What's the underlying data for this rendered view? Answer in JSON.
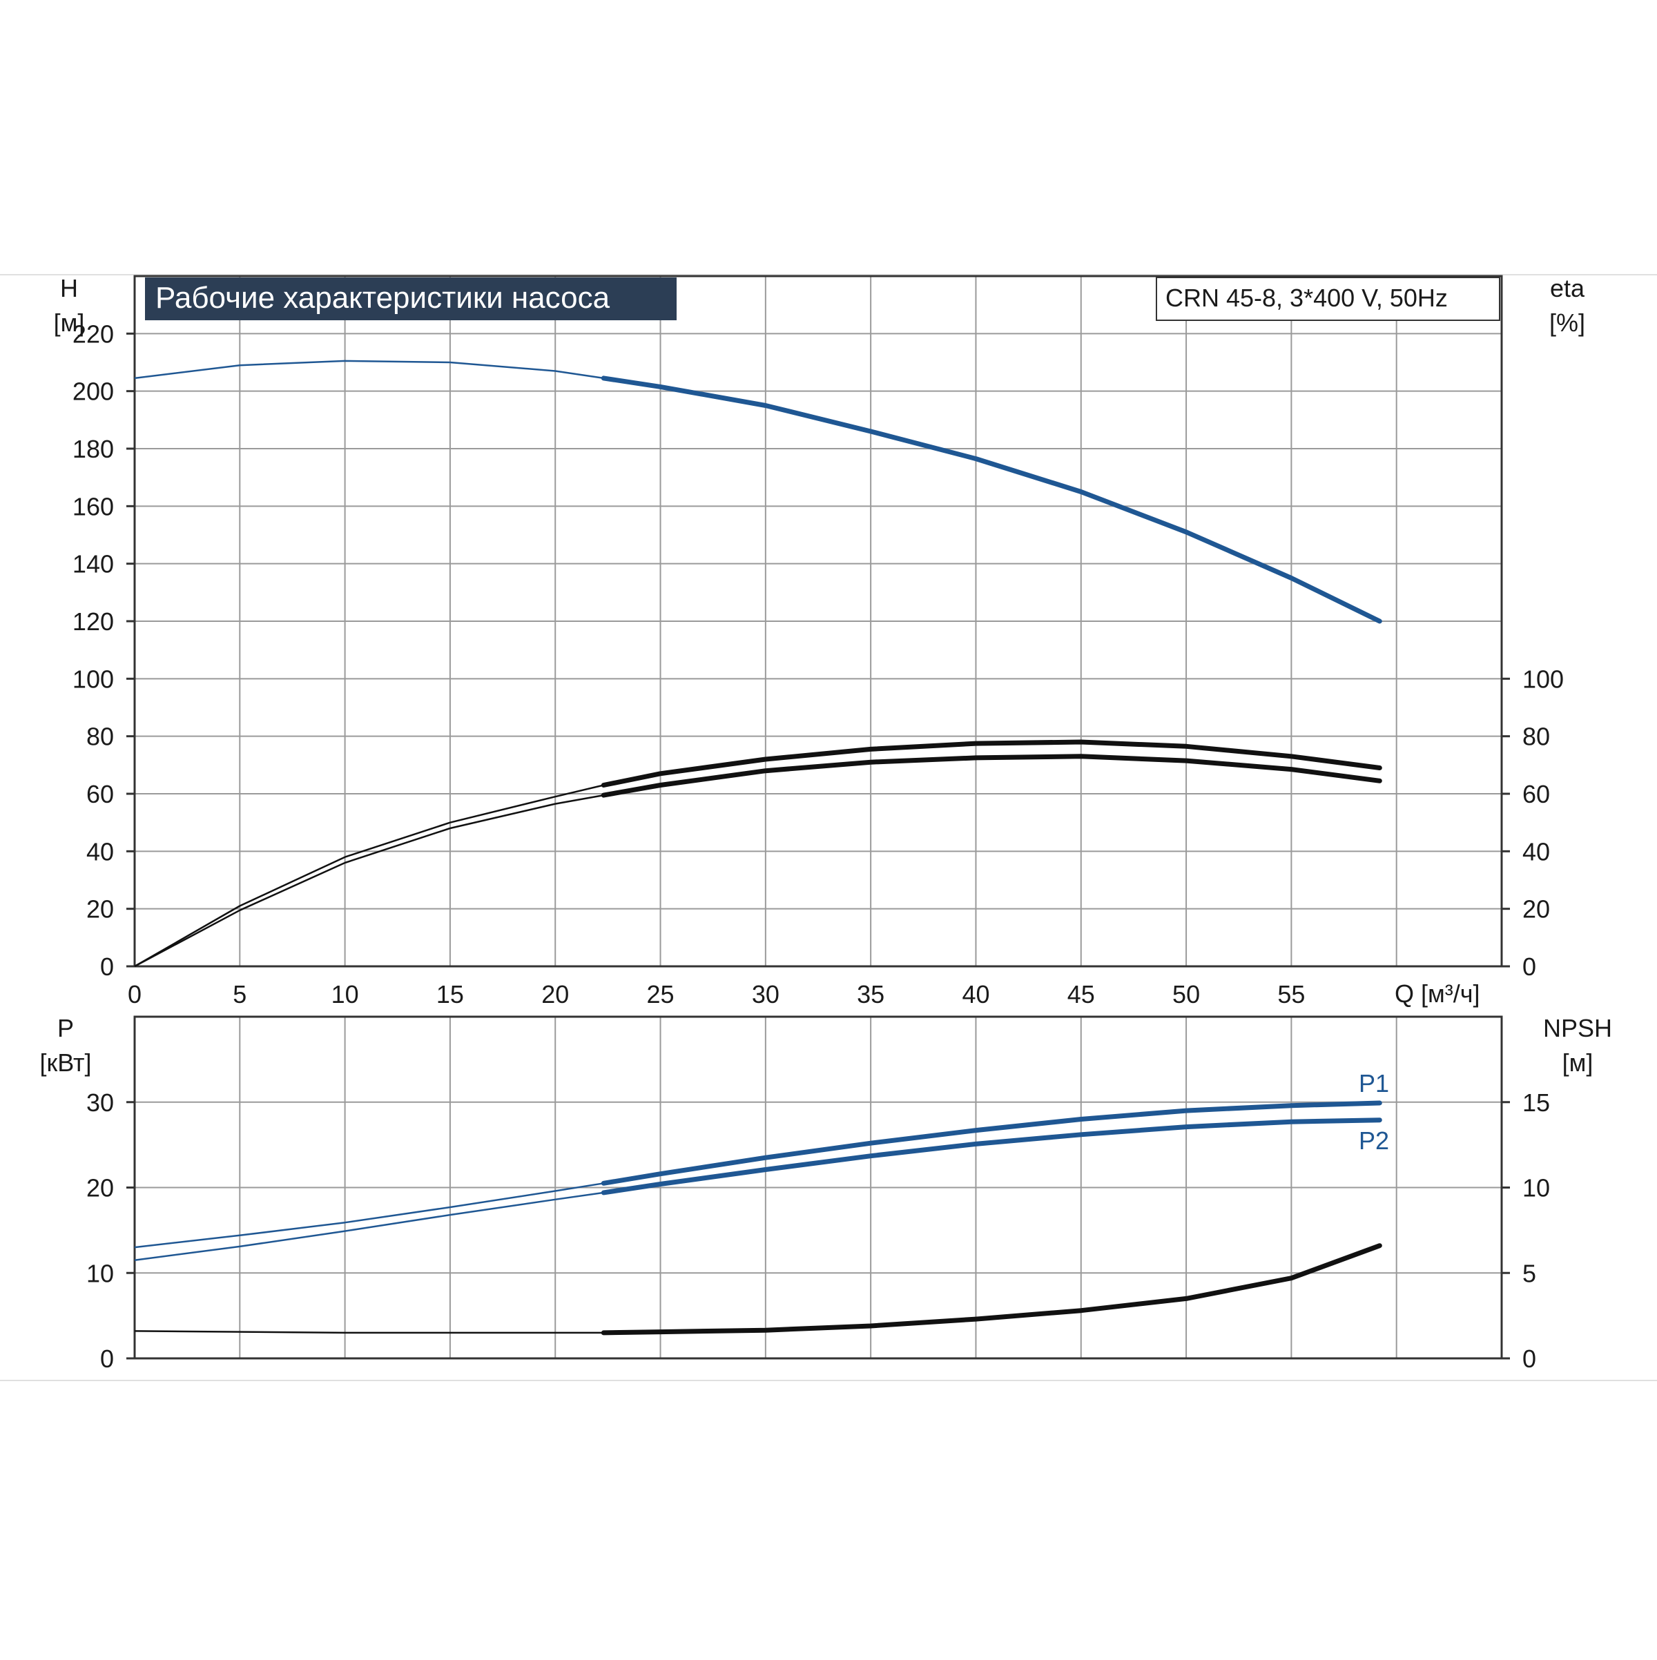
{
  "title": "Рабочие характеристики насоса",
  "model_label": "CRN 45-8, 3*400 V, 50Hz",
  "colors": {
    "blue": "#1f5793",
    "black": "#111111",
    "grid": "#9a9a9a",
    "title_bg": "#2c3e55"
  },
  "chart_data": [
    {
      "type": "line",
      "name": "top",
      "xlabel": "Q [м³/ч]",
      "ylabel": [
        "H",
        "[м]"
      ],
      "ylabel_right": [
        "eta",
        "[%]"
      ],
      "xlim": [
        0,
        65
      ],
      "ylim": [
        0,
        240
      ],
      "x_ticks": [
        0,
        5,
        10,
        15,
        20,
        25,
        30,
        35,
        40,
        45,
        50,
        55
      ],
      "y_ticks_left": [
        0,
        20,
        40,
        60,
        80,
        100,
        120,
        140,
        160,
        180,
        200,
        220
      ],
      "y_ticks_right": [
        0,
        20,
        40,
        60,
        80,
        100
      ],
      "grid": true,
      "series": [
        {
          "axis": "left",
          "color": "blue",
          "op_start": 22.3,
          "x": [
            0,
            5,
            10,
            15,
            20,
            22.3,
            25,
            30,
            35,
            40,
            45,
            50,
            55,
            59.2
          ],
          "y": [
            204.5,
            209,
            210.5,
            210,
            207,
            204.5,
            201.5,
            195,
            186,
            176.5,
            165,
            151,
            135,
            120
          ]
        },
        {
          "axis": "right",
          "color": "black",
          "op_start": 22.3,
          "x": [
            0,
            5,
            10,
            15,
            20,
            22.3,
            25,
            30,
            35,
            40,
            45,
            50,
            55,
            59.2
          ],
          "y": [
            0,
            21,
            38,
            50,
            59,
            63,
            67,
            72,
            75.5,
            77.5,
            78,
            76.5,
            73,
            69
          ]
        },
        {
          "axis": "right",
          "color": "black",
          "op_start": 22.3,
          "x": [
            0,
            5,
            10,
            15,
            20,
            22.3,
            25,
            30,
            35,
            40,
            45,
            50,
            55,
            59.2
          ],
          "y": [
            0,
            19.5,
            36,
            48,
            56.5,
            59.5,
            63,
            68,
            71,
            72.5,
            73,
            71.5,
            68.5,
            64.5
          ]
        }
      ]
    },
    {
      "type": "line",
      "name": "bottom",
      "ylabel": [
        "P",
        "[кВт]"
      ],
      "ylabel_right": [
        "NPSH",
        "[м]"
      ],
      "xlim": [
        0,
        65
      ],
      "ylim": [
        0,
        40
      ],
      "x_ticks": [
        0,
        5,
        10,
        15,
        20,
        25,
        30,
        35,
        40,
        45,
        50,
        55
      ],
      "y_ticks_left": [
        0,
        10,
        20,
        30
      ],
      "y_ticks_right": [
        0,
        5,
        10,
        15
      ],
      "grid": true,
      "series": [
        {
          "name": "P1",
          "axis": "left",
          "color": "blue",
          "op_start": 22.3,
          "x": [
            0,
            5,
            10,
            15,
            20,
            22.3,
            25,
            30,
            35,
            40,
            45,
            50,
            55,
            59.2
          ],
          "y": [
            13,
            14.4,
            15.9,
            17.7,
            19.6,
            20.5,
            21.6,
            23.5,
            25.2,
            26.7,
            28,
            29,
            29.6,
            29.9
          ]
        },
        {
          "name": "P2",
          "axis": "left",
          "color": "blue",
          "op_start": 22.3,
          "x": [
            0,
            5,
            10,
            15,
            20,
            22.3,
            25,
            30,
            35,
            40,
            45,
            50,
            55,
            59.2
          ],
          "y": [
            11.5,
            13.1,
            14.9,
            16.8,
            18.6,
            19.4,
            20.4,
            22.1,
            23.7,
            25.1,
            26.2,
            27.1,
            27.7,
            27.9
          ]
        },
        {
          "axis": "right",
          "color": "black",
          "op_start": 22.3,
          "x": [
            0,
            10,
            20,
            22.3,
            25,
            30,
            35,
            40,
            45,
            50,
            55,
            59.2
          ],
          "y": [
            1.6,
            1.5,
            1.5,
            1.5,
            1.55,
            1.65,
            1.9,
            2.3,
            2.8,
            3.5,
            4.7,
            6.6
          ]
        }
      ]
    }
  ]
}
